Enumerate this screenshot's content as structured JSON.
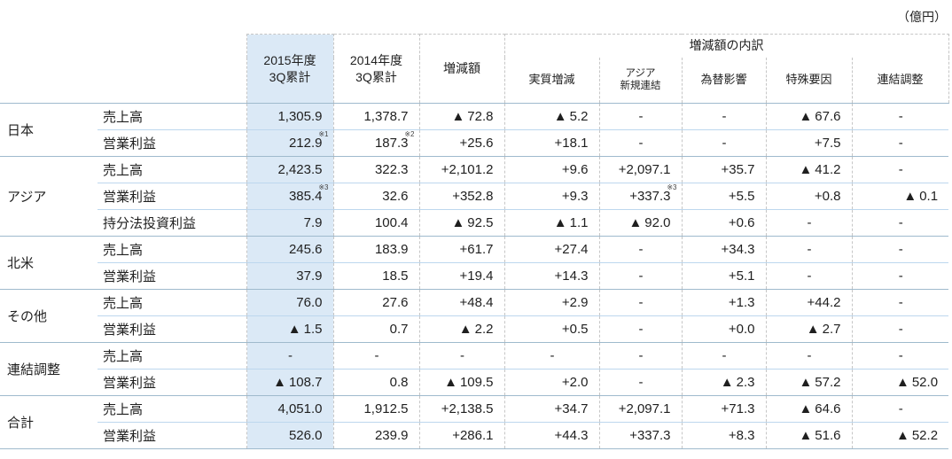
{
  "unit_label": "（億円）",
  "table": {
    "columns": {
      "col_2015_line1": "2015年度",
      "col_2015_line2": "3Q累計",
      "col_2014_line1": "2014年度",
      "col_2014_line2": "3Q累計",
      "col_change": "増減額",
      "breakdown": "増減額の内訳"
    },
    "sub_columns": {
      "real": "実質増減",
      "asia_line1": "アジア",
      "asia_line2": "新規連結",
      "fx": "為替影響",
      "special": "特殊要因",
      "consolidation": "連結調整"
    },
    "colors": {
      "highlight_column_bg": "#dbe9f6",
      "inner_row_line": "#bdd7ee",
      "group_row_line": "#9fbacd",
      "column_divider": "#c6c6c6"
    },
    "groups": [
      {
        "name": "日本",
        "rows": [
          {
            "metric": "売上高",
            "values": [
              "1,305.9",
              "1,378.7",
              "▲72.8",
              "▲5.2",
              "-",
              "-",
              "▲67.6",
              "-"
            ]
          },
          {
            "metric": "営業利益",
            "values": [
              "212.9",
              "187.3",
              "+25.6",
              "+18.1",
              "-",
              "-",
              "+7.5",
              "-"
            ],
            "sups": {
              "0": "※1",
              "1": "※2"
            }
          }
        ]
      },
      {
        "name": "アジア",
        "rows": [
          {
            "metric": "売上高",
            "values": [
              "2,423.5",
              "322.3",
              "+2,101.2",
              "+9.6",
              "+2,097.1",
              "+35.7",
              "▲41.2",
              "-"
            ]
          },
          {
            "metric": "営業利益",
            "values": [
              "385.4",
              "32.6",
              "+352.8",
              "+9.3",
              "+337.3",
              "+5.5",
              "+0.8",
              "▲0.1"
            ],
            "sups": {
              "0": "※3",
              "4": "※3"
            }
          },
          {
            "metric": "持分法投資利益",
            "values": [
              "7.9",
              "100.4",
              "▲92.5",
              "▲1.1",
              "▲92.0",
              "+0.6",
              "-",
              "-"
            ]
          }
        ]
      },
      {
        "name": "北米",
        "rows": [
          {
            "metric": "売上高",
            "values": [
              "245.6",
              "183.9",
              "+61.7",
              "+27.4",
              "-",
              "+34.3",
              "-",
              "-"
            ]
          },
          {
            "metric": "営業利益",
            "values": [
              "37.9",
              "18.5",
              "+19.4",
              "+14.3",
              "-",
              "+5.1",
              "-",
              "-"
            ]
          }
        ]
      },
      {
        "name": "その他",
        "rows": [
          {
            "metric": "売上高",
            "values": [
              "76.0",
              "27.6",
              "+48.4",
              "+2.9",
              "-",
              "+1.3",
              "+44.2",
              "-"
            ]
          },
          {
            "metric": "営業利益",
            "values": [
              "▲1.5",
              "0.7",
              "▲2.2",
              "+0.5",
              "-",
              "+0.0",
              "▲2.7",
              "-"
            ]
          }
        ]
      },
      {
        "name": "連結調整",
        "rows": [
          {
            "metric": "売上高",
            "values": [
              "-",
              "-",
              "-",
              "-",
              "-",
              "-",
              "-",
              "-"
            ]
          },
          {
            "metric": "営業利益",
            "values": [
              "▲108.7",
              "0.8",
              "▲109.5",
              "+2.0",
              "-",
              "▲2.3",
              "▲57.2",
              "▲52.0"
            ]
          }
        ]
      },
      {
        "name": "合計",
        "rows": [
          {
            "metric": "売上高",
            "values": [
              "4,051.0",
              "1,912.5",
              "+2,138.5",
              "+34.7",
              "+2,097.1",
              "+71.3",
              "▲64.6",
              "-"
            ]
          },
          {
            "metric": "営業利益",
            "values": [
              "526.0",
              "239.9",
              "+286.1",
              "+44.3",
              "+337.3",
              "+8.3",
              "▲51.6",
              "▲52.2"
            ]
          }
        ]
      }
    ]
  }
}
